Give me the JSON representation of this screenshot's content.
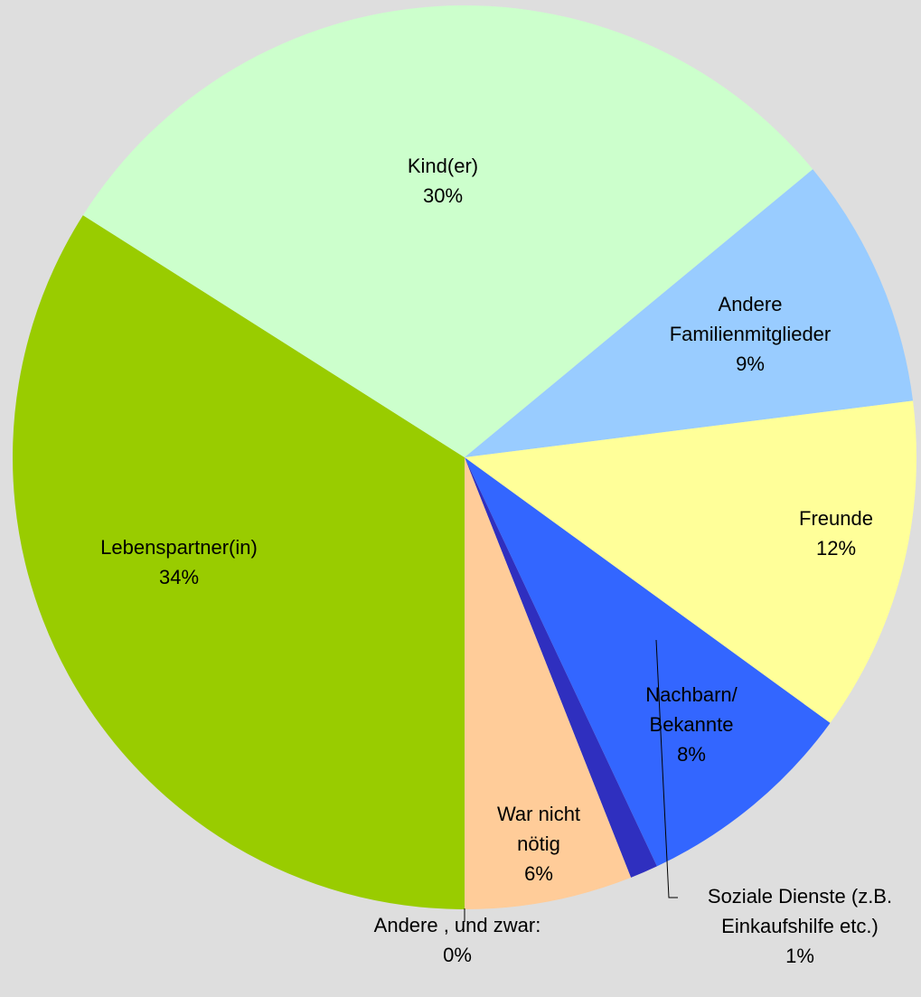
{
  "chart_data": {
    "type": "pie",
    "categories": [
      "Lebenspartner(in)",
      "Kind(er)",
      "Andere\nFamilienmitglieder",
      "Freunde",
      "Nachbarn/\nBekannte",
      "Soziale Dienste (z.B.\nEinkaufshilfe etc.)",
      "War nicht\nnötig",
      "Andere , und zwar:"
    ],
    "values": [
      34,
      30,
      9,
      12,
      8,
      1,
      6,
      0
    ],
    "value_labels": [
      "34%",
      "30%",
      "9%",
      "12%",
      "8%",
      "1%",
      "6%",
      "0%"
    ],
    "colors": [
      "#99cc00",
      "#ccffcc",
      "#99ccff",
      "#ffff99",
      "#3366ff",
      "#2f2fbf",
      "#ffcc99",
      "#999999"
    ]
  }
}
